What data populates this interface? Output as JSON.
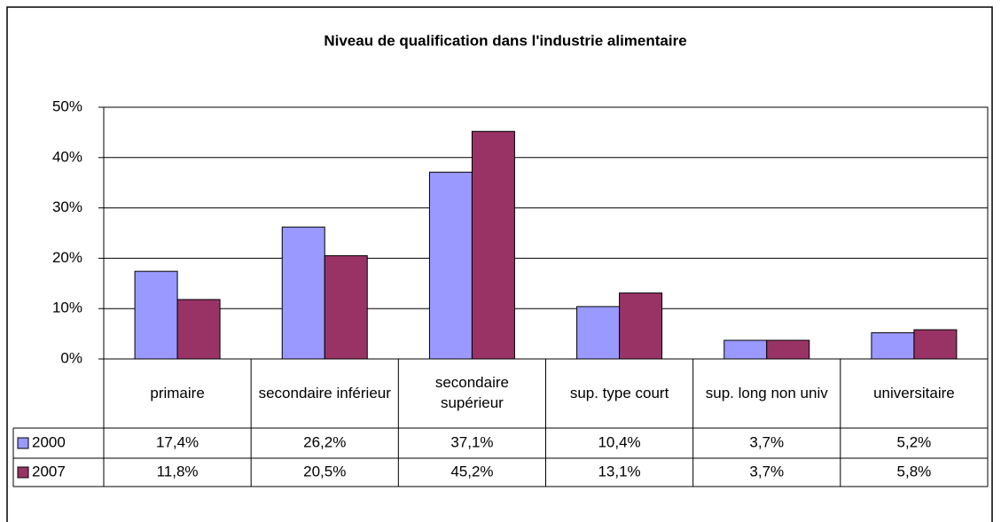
{
  "chart_data": {
    "type": "bar",
    "title": "Niveau de qualification dans l'industrie alimentaire",
    "categories": [
      "primaire",
      "secondaire inférieur",
      "secondaire supérieur",
      "sup. type court",
      "sup. long non univ",
      "universitaire"
    ],
    "series": [
      {
        "name": "2000",
        "color": "#9999ff",
        "values": [
          17.4,
          26.2,
          37.1,
          10.4,
          3.7,
          5.2
        ],
        "value_labels": [
          "17,4%",
          "26,2%",
          "37,1%",
          "10,4%",
          "3,7%",
          "5,2%"
        ]
      },
      {
        "name": "2007",
        "color": "#993366",
        "values": [
          11.8,
          20.5,
          45.2,
          13.1,
          3.7,
          5.8
        ],
        "value_labels": [
          "11,8%",
          "20,5%",
          "45,2%",
          "13,1%",
          "3,7%",
          "5,8%"
        ]
      }
    ],
    "ylim": [
      0,
      50
    ],
    "yticks": [
      {
        "value": 0,
        "label": "0%"
      },
      {
        "value": 10,
        "label": "10%"
      },
      {
        "value": 20,
        "label": "20%"
      },
      {
        "value": 30,
        "label": "30%"
      },
      {
        "value": 40,
        "label": "40%"
      },
      {
        "value": 50,
        "label": "50%"
      }
    ],
    "grid": true
  }
}
